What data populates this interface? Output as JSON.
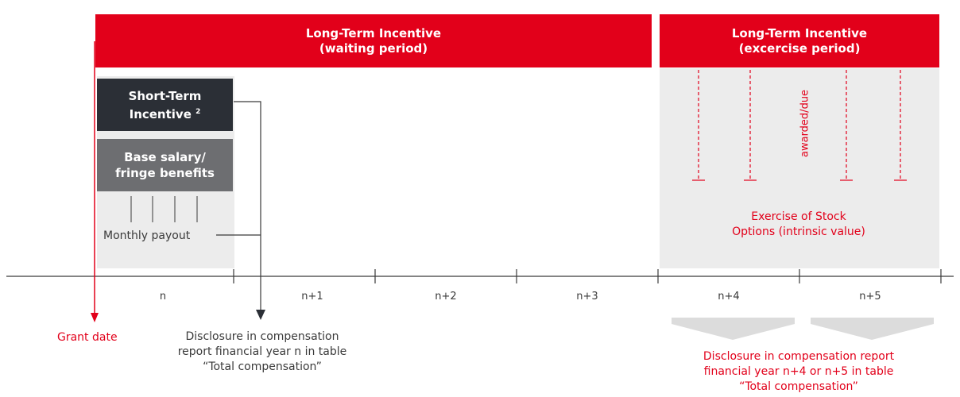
{
  "colors": {
    "red": "#e2001a",
    "dark_box": "#2b2f36",
    "grey_box": "#6d6e71",
    "light_bg": "#ececec",
    "text": "#3a3a3a"
  },
  "lti_waiting": {
    "line1": "Long-Term Incentive",
    "line2": "(waiting period)"
  },
  "lti_exercise": {
    "line1": "Long-Term Incentive",
    "line2": "(excercise period)"
  },
  "sti": {
    "line1": "Short-Term",
    "line2": "Incentive",
    "footnote": "2"
  },
  "base_salary": {
    "line1": "Base salary/",
    "line2": "fringe benefits"
  },
  "monthly_payout": "Monthly payout",
  "awarded_due": "awarded/due",
  "exercise_options": {
    "line1": "Exercise of Stock",
    "line2": "Options (intrinsic value)"
  },
  "years": [
    "n",
    "n+1",
    "n+2",
    "n+3",
    "n+4",
    "n+5"
  ],
  "grant_date": "Grant date",
  "disclosure_left": {
    "line1": "Disclosure in compensation",
    "line2": "report financial year n in table",
    "line3": "“Total compensation”"
  },
  "disclosure_right": {
    "line1": "Disclosure in compensation report",
    "line2": "financial year n+4 or n+5 in table",
    "line3": "“Total compensation”"
  }
}
